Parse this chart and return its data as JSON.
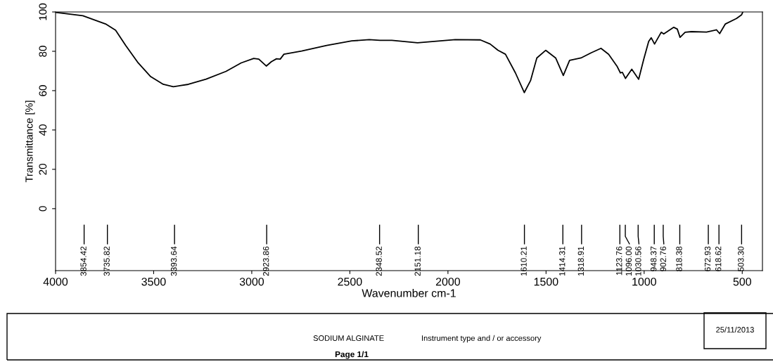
{
  "chart_data": {
    "type": "line",
    "xlabel": "Wavenumber cm-1",
    "ylabel": "Transmittance [%]",
    "xlim": [
      4000,
      397
    ],
    "ylim": [
      -31.5,
      100
    ],
    "xticks": [
      4000,
      3500,
      3000,
      2500,
      2000,
      1500,
      1000,
      500
    ],
    "yticks": [
      0,
      20,
      40,
      60,
      80,
      100
    ],
    "grid": false,
    "legend": false,
    "series": [
      {
        "color": "#000000",
        "x": [
          4000,
          3861,
          3745,
          3694,
          3643,
          3579,
          3515,
          3451,
          3400,
          3323,
          3233,
          3131,
          3054,
          2990,
          2964,
          2926,
          2900,
          2874,
          2855,
          2836,
          2746,
          2618,
          2490,
          2401,
          2347,
          2286,
          2155,
          1963,
          1835,
          1785,
          1745,
          1707,
          1656,
          1611,
          1579,
          1547,
          1502,
          1451,
          1412,
          1380,
          1322,
          1271,
          1220,
          1181,
          1137,
          1121,
          1111,
          1095,
          1063,
          1028,
          1002,
          977,
          964,
          947,
          913,
          900,
          849,
          831,
          817,
          791,
          759,
          682,
          631,
          615,
          586,
          529,
          503,
          497
        ],
        "values": [
          99.8,
          98.1,
          93.9,
          90.7,
          83.0,
          74.1,
          67.1,
          63.2,
          62.0,
          63.2,
          65.8,
          69.8,
          74.1,
          76.4,
          76.0,
          72.5,
          74.7,
          76.2,
          76.0,
          78.5,
          80.1,
          83.0,
          85.3,
          85.9,
          85.6,
          85.6,
          84.3,
          85.9,
          85.8,
          83.7,
          80.5,
          78.5,
          69.0,
          59.0,
          65.1,
          76.6,
          80.5,
          76.6,
          67.7,
          75.4,
          76.6,
          79.2,
          81.5,
          78.5,
          72.2,
          69.0,
          69.3,
          66.2,
          70.9,
          65.8,
          76.0,
          85.0,
          86.9,
          83.7,
          89.7,
          88.8,
          92.2,
          91.3,
          87.1,
          89.7,
          90.0,
          89.8,
          90.9,
          89.0,
          93.9,
          96.7,
          98.6,
          100
        ]
      }
    ],
    "annotations": [
      {
        "text": "3854.42",
        "x": 3854.42
      },
      {
        "text": "3735.82",
        "x": 3735.82
      },
      {
        "text": "3393.64",
        "x": 3393.64
      },
      {
        "text": "2923.86",
        "x": 2923.86
      },
      {
        "text": "2348.52",
        "x": 2348.52
      },
      {
        "text": "2151.18",
        "x": 2151.18
      },
      {
        "text": "1610.21",
        "x": 1610.21
      },
      {
        "text": "1414.31",
        "x": 1414.31
      },
      {
        "text": "1318.91",
        "x": 1318.91
      },
      {
        "text": "1123.76",
        "x": 1123.76
      },
      {
        "text": "1096.00",
        "x": 1096.0
      },
      {
        "text": "1030.56",
        "x": 1030.56
      },
      {
        "text": "948.37",
        "x": 948.37
      },
      {
        "text": "902.76",
        "x": 902.76
      },
      {
        "text": "818.38",
        "x": 818.38
      },
      {
        "text": "672.93",
        "x": 672.93
      },
      {
        "text": "618.62",
        "x": 618.62
      },
      {
        "text": "503.30",
        "x": 503.3
      },
      "SODIUM ALGINATE",
      "Instrument type and / or accessory",
      "25/11/2013",
      "Page 1/1"
    ]
  }
}
